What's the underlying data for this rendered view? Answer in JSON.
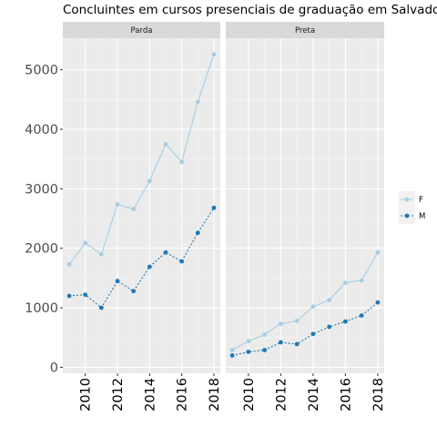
{
  "chart_data": {
    "type": "line",
    "title": "Concluintes em cursos presenciais de graduação em Salvador-BA",
    "xlabel": "",
    "ylabel": "",
    "xlim": [
      2008.6,
      2018.4
    ],
    "ylim": [
      -100,
      5530
    ],
    "x_ticks": [
      2010,
      2012,
      2014,
      2016,
      2018
    ],
    "y_ticks": [
      0,
      1000,
      2000,
      3000,
      4000,
      5000
    ],
    "grid": true,
    "legend_position": "right",
    "x": [
      2009,
      2010,
      2011,
      2012,
      2013,
      2014,
      2015,
      2016,
      2017,
      2018
    ],
    "facets": [
      {
        "label": "Parda",
        "series": [
          {
            "name": "F",
            "color": "#a6cee3",
            "line": "solid",
            "values": [
              1730,
              2090,
              1900,
              2740,
              2660,
              3130,
              3750,
              3450,
              4460,
              5260
            ]
          },
          {
            "name": "M",
            "color": "#1f78b4",
            "line": "dotted",
            "values": [
              1200,
              1220,
              1000,
              1450,
              1280,
              1690,
              1930,
              1780,
              2260,
              2680
            ]
          }
        ]
      },
      {
        "label": "Preta",
        "series": [
          {
            "name": "F",
            "color": "#a6cee3",
            "line": "solid",
            "values": [
              290,
              440,
              550,
              730,
              780,
              1020,
              1130,
              1420,
              1460,
              1930
            ]
          },
          {
            "name": "M",
            "color": "#1f78b4",
            "line": "dotted",
            "values": [
              200,
              260,
              290,
              420,
              390,
              560,
              680,
              770,
              870,
              1090
            ]
          }
        ]
      }
    ],
    "legend": [
      "F",
      "M"
    ]
  }
}
